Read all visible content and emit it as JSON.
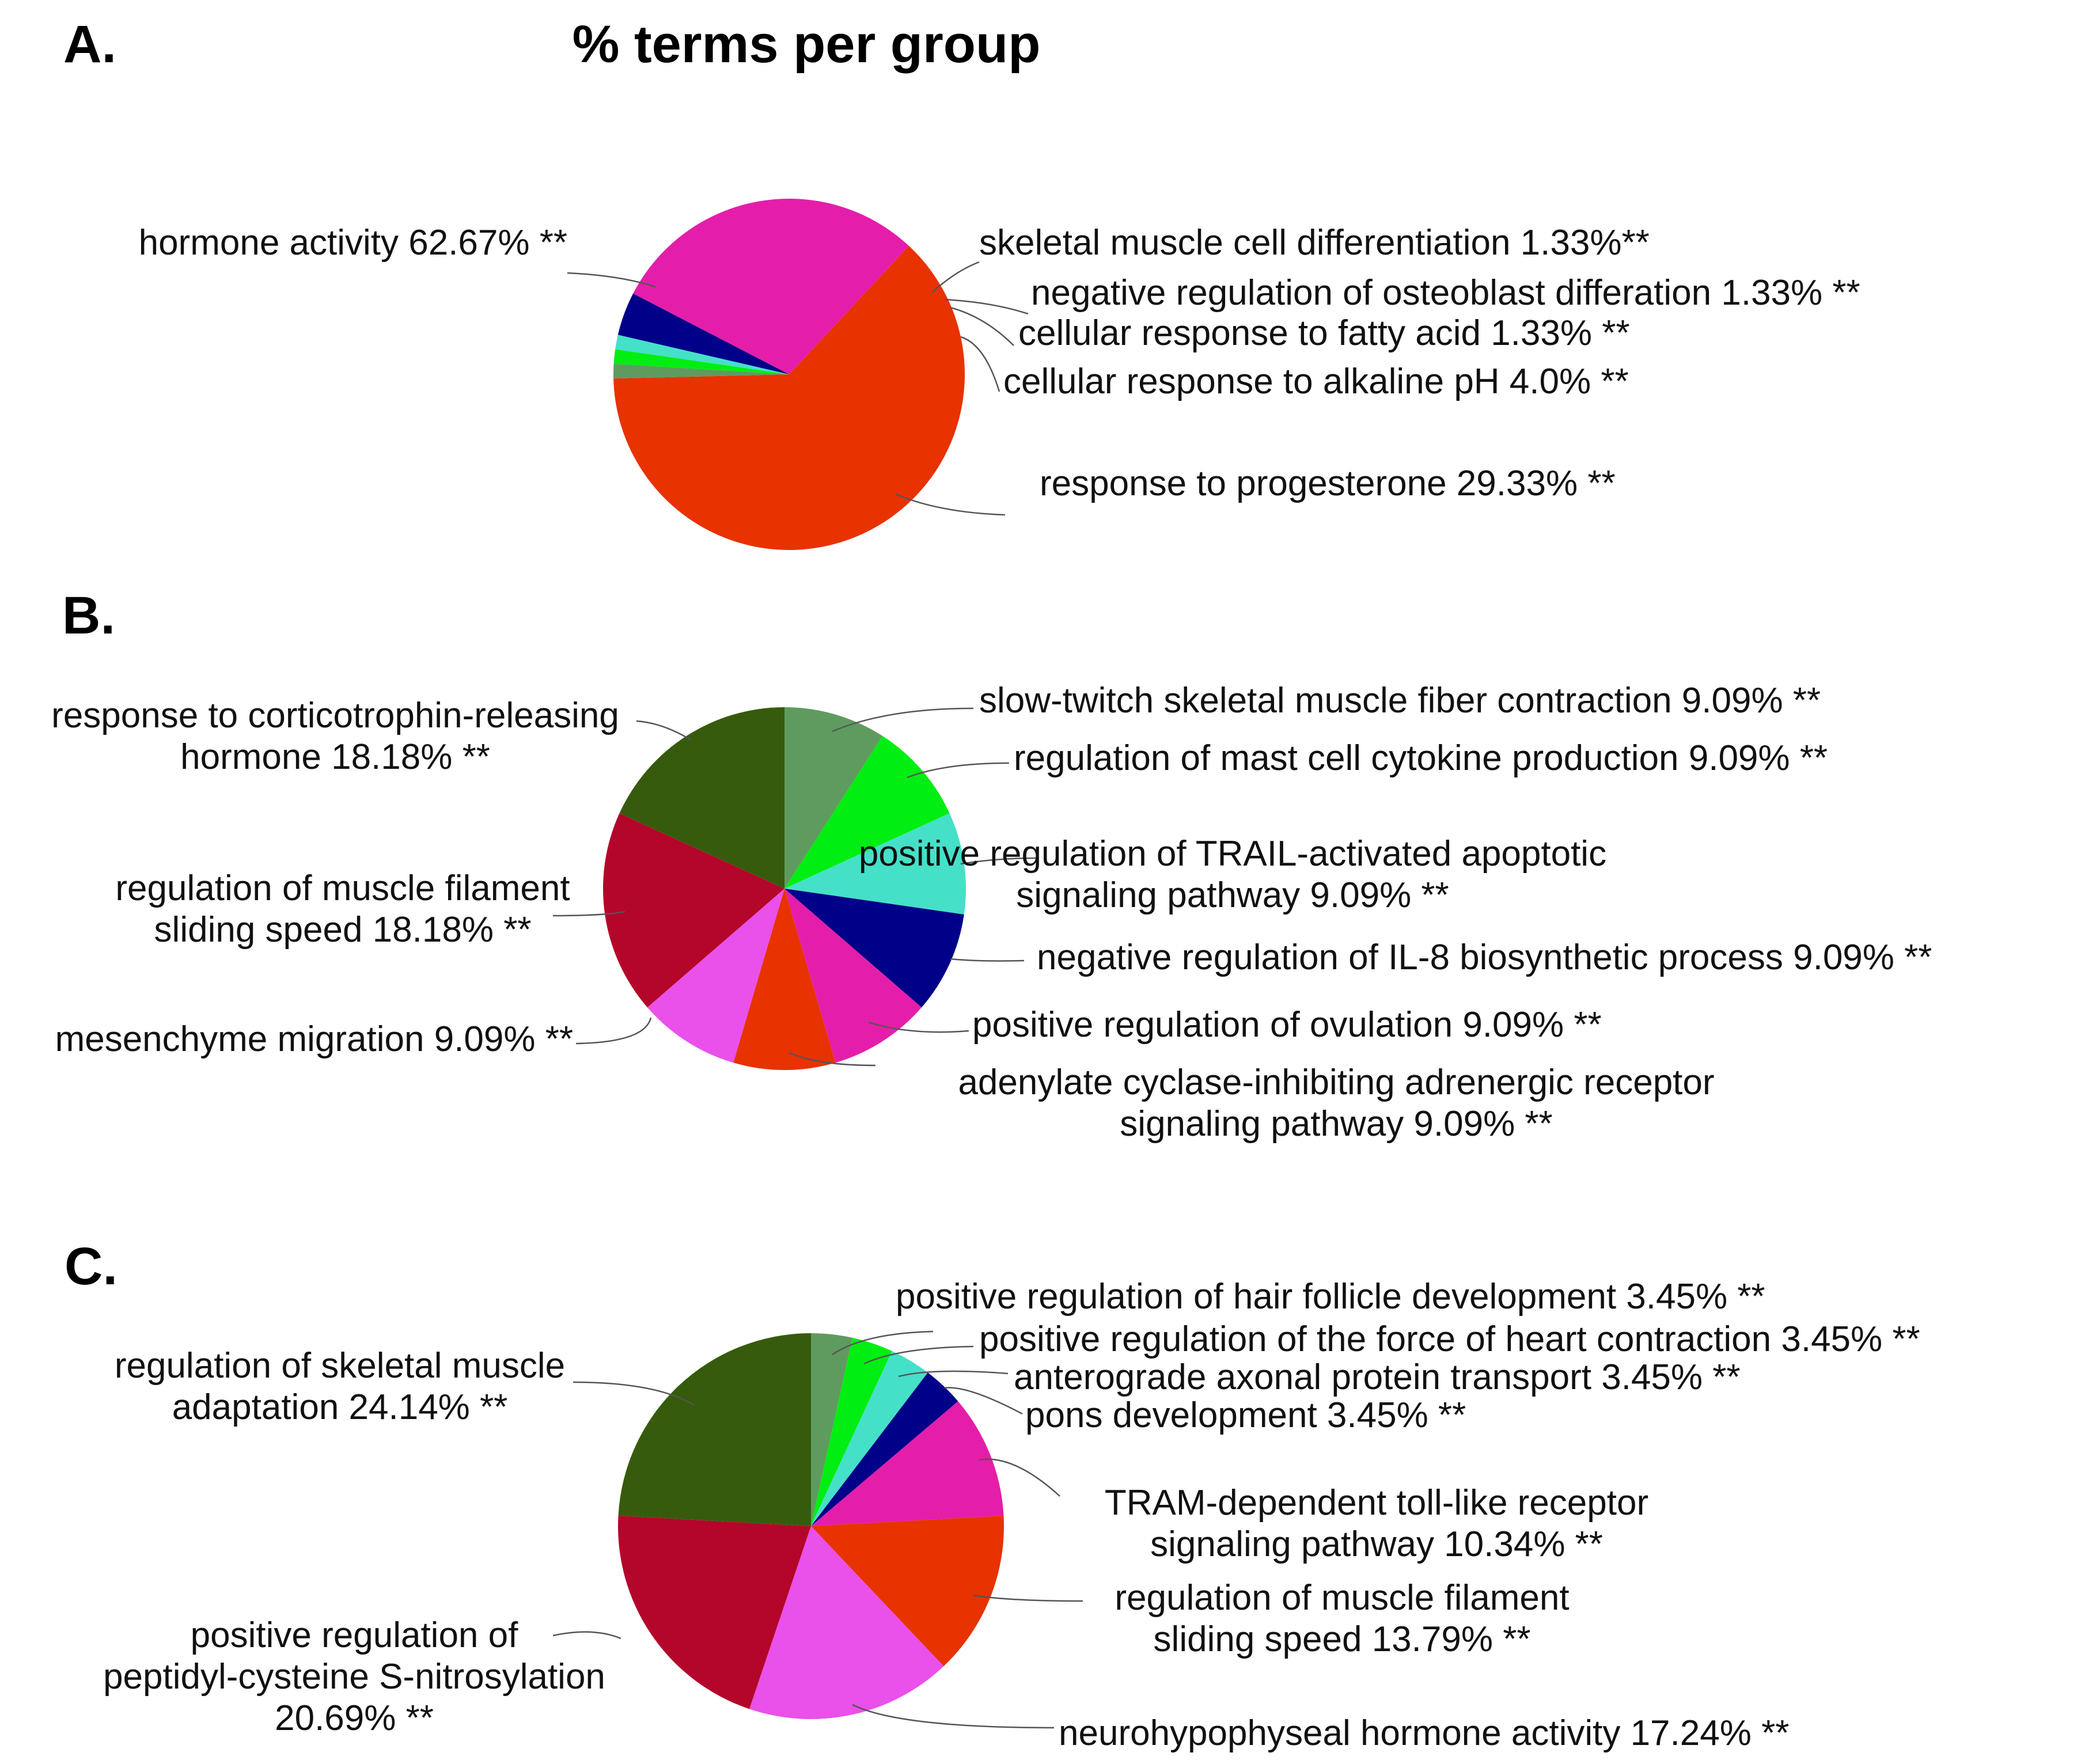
{
  "title": "% terms per group",
  "chart_data": [
    {
      "type": "pie",
      "panel": "A.",
      "slices": [
        {
          "label": [
            "hormone activity 62.67% **"
          ],
          "value": 62.67,
          "color": "#e83200"
        },
        {
          "label": [
            "skeletal muscle cell differentiation 1.33%**"
          ],
          "value": 1.33,
          "color": "#5f9b5f"
        },
        {
          "label": [
            "negative regulation of osteoblast differation 1.33% **"
          ],
          "value": 1.33,
          "color": "#00ee11"
        },
        {
          "label": [
            "cellular response to fatty acid 1.33% **"
          ],
          "value": 1.33,
          "color": "#45e0c8"
        },
        {
          "label": [
            "cellular response to alkaline pH 4.0% **"
          ],
          "value": 4.0,
          "color": "#000088"
        },
        {
          "label": [
            "response to progesterone 29.33% **"
          ],
          "value": 29.33,
          "color": "#e41eaa"
        }
      ]
    },
    {
      "type": "pie",
      "panel": "B.",
      "slices": [
        {
          "label": [
            "slow-twitch skeletal muscle fiber contraction 9.09% **"
          ],
          "value": 9.09,
          "color": "#5f9b5f"
        },
        {
          "label": [
            "regulation of mast cell cytokine production 9.09% **"
          ],
          "value": 9.09,
          "color": "#00ee11"
        },
        {
          "label": [
            "positive regulation of TRAIL-activated apoptotic",
            "signaling pathway 9.09% **"
          ],
          "value": 9.09,
          "color": "#45e0c8"
        },
        {
          "label": [
            "negative regulation of IL-8 biosynthetic process 9.09% **"
          ],
          "value": 9.09,
          "color": "#000088"
        },
        {
          "label": [
            "positive regulation of ovulation 9.09% **"
          ],
          "value": 9.09,
          "color": "#e41eaa"
        },
        {
          "label": [
            "adenylate cyclase-inhibiting adrenergic receptor",
            "signaling pathway 9.09% **"
          ],
          "value": 9.09,
          "color": "#e83200"
        },
        {
          "label": [
            "mesenchyme migration 9.09% **"
          ],
          "value": 9.09,
          "color": "#ea50ea"
        },
        {
          "label": [
            "regulation of muscle filament",
            "sliding speed 18.18% **"
          ],
          "value": 18.18,
          "color": "#b4062a"
        },
        {
          "label": [
            "response to corticotrophin-releasing",
            "hormone 18.18% **"
          ],
          "value": 18.18,
          "color": "#365b0c"
        }
      ]
    },
    {
      "type": "pie",
      "panel": "C.",
      "slices": [
        {
          "label": [
            "positive regulation of hair follicle development 3.45% **"
          ],
          "value": 3.45,
          "color": "#5f9b5f"
        },
        {
          "label": [
            "positive regulation of the force of heart contraction 3.45% **"
          ],
          "value": 3.45,
          "color": "#00ee11"
        },
        {
          "label": [
            "anterograde axonal protein transport 3.45% **"
          ],
          "value": 3.45,
          "color": "#45e0c8"
        },
        {
          "label": [
            "pons development 3.45% **"
          ],
          "value": 3.45,
          "color": "#000088"
        },
        {
          "label": [
            "TRAM-dependent toll-like receptor",
            "signaling pathway 10.34% **"
          ],
          "value": 10.34,
          "color": "#e41eaa"
        },
        {
          "label": [
            "regulation of muscle filament",
            "sliding speed 13.79% **"
          ],
          "value": 13.79,
          "color": "#e83200"
        },
        {
          "label": [
            "neurohypophyseal hormone activity 17.24% **"
          ],
          "value": 17.24,
          "color": "#ea50ea"
        },
        {
          "label": [
            "positive regulation of",
            "peptidyl-cysteine S-nitrosylation",
            "20.69% **"
          ],
          "value": 20.69,
          "color": "#b4062a"
        },
        {
          "label": [
            "regulation of skeletal muscle",
            "adaptation 24.14% **"
          ],
          "value": 24.14,
          "color": "#365b0c"
        }
      ]
    }
  ]
}
